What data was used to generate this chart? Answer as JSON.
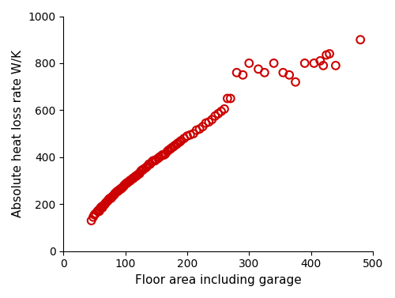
{
  "x": [
    45,
    48,
    50,
    52,
    55,
    57,
    58,
    60,
    62,
    63,
    65,
    67,
    68,
    70,
    72,
    73,
    75,
    77,
    78,
    80,
    82,
    83,
    85,
    87,
    88,
    90,
    92,
    93,
    95,
    97,
    98,
    100,
    102,
    103,
    105,
    107,
    108,
    110,
    112,
    113,
    115,
    117,
    118,
    120,
    122,
    123,
    125,
    127,
    128,
    130,
    133,
    135,
    138,
    140,
    143,
    145,
    148,
    150,
    153,
    155,
    158,
    160,
    163,
    165,
    168,
    170,
    173,
    175,
    178,
    180,
    183,
    185,
    188,
    190,
    195,
    200,
    205,
    210,
    215,
    220,
    225,
    230,
    235,
    240,
    245,
    250,
    255,
    260,
    265,
    270,
    280,
    290,
    300,
    315,
    325,
    340,
    355,
    365,
    375,
    390,
    405,
    415,
    420,
    425,
    430,
    440,
    480
  ],
  "y": [
    130,
    145,
    155,
    160,
    170,
    175,
    170,
    185,
    190,
    185,
    195,
    200,
    205,
    210,
    215,
    220,
    225,
    225,
    230,
    235,
    240,
    245,
    250,
    255,
    255,
    260,
    265,
    265,
    270,
    275,
    280,
    285,
    290,
    290,
    295,
    300,
    300,
    305,
    310,
    310,
    315,
    320,
    320,
    325,
    330,
    330,
    340,
    345,
    345,
    350,
    355,
    360,
    370,
    370,
    380,
    385,
    385,
    390,
    395,
    400,
    405,
    410,
    410,
    415,
    425,
    430,
    435,
    440,
    445,
    450,
    455,
    460,
    465,
    470,
    480,
    490,
    495,
    500,
    515,
    520,
    530,
    545,
    550,
    560,
    575,
    585,
    595,
    605,
    650,
    650,
    760,
    750,
    800,
    775,
    760,
    800,
    760,
    750,
    720,
    800,
    800,
    810,
    790,
    835,
    840,
    790,
    900
  ],
  "marker_color": "#CC0000",
  "marker_facecolor": "none",
  "marker_size": 7,
  "marker_lw": 1.5,
  "xlabel": "Floor area including garage",
  "ylabel": "Absolute heat loss rate W/K",
  "xlim": [
    0,
    500
  ],
  "ylim": [
    0,
    1000
  ],
  "xticks": [
    0,
    100,
    200,
    300,
    400,
    500
  ],
  "yticks": [
    0,
    200,
    400,
    600,
    800,
    1000
  ],
  "bg_color": "#ffffff",
  "spine_color": "#000000",
  "tick_color": "#000000",
  "label_fontsize": 11,
  "tick_fontsize": 10
}
